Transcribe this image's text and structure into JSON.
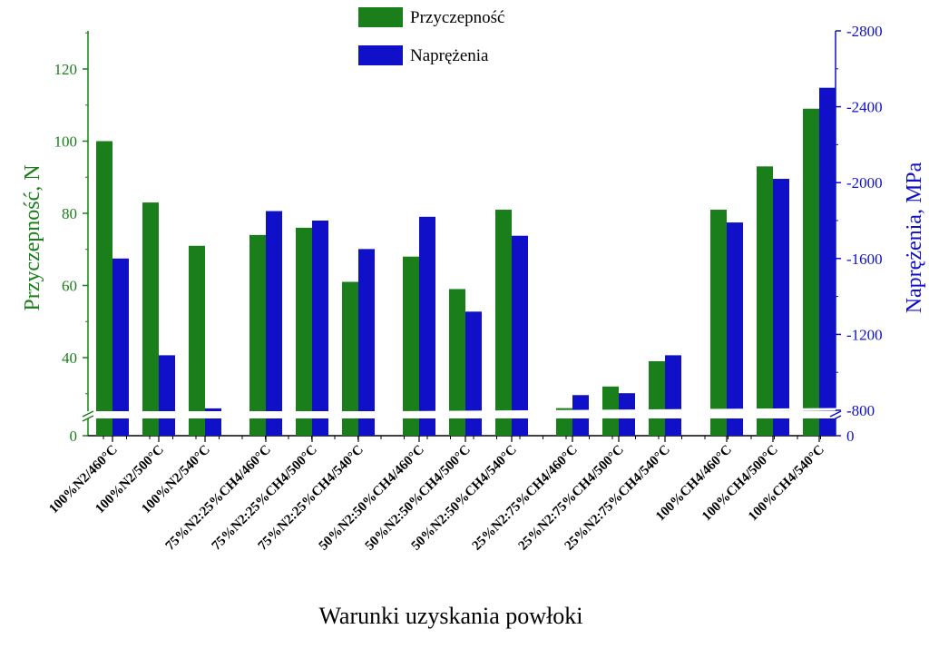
{
  "chart_data": {
    "type": "bar",
    "title": "",
    "xlabel": "Warunki uzyskania powłoki",
    "ylabel_left": "Przyczepność, N",
    "ylabel_right": "Naprężenia, MPa",
    "colors": {
      "left": "#1a7f1a",
      "right": "#1010c8",
      "axis": "#000000"
    },
    "left_axis": {
      "broken": true,
      "ylim": [
        20,
        130
      ],
      "ticks": [
        40,
        60,
        80,
        100,
        120
      ],
      "below_break_tick": 0
    },
    "right_axis": {
      "broken": true,
      "ylim": [
        -800,
        -2800
      ],
      "ticks": [
        -800,
        -1200,
        -1600,
        -2000,
        -2400,
        -2800
      ],
      "below_break_tick": 0
    },
    "legend": {
      "position": "top-center",
      "entries": [
        "Przyczepność",
        "Naprężenia"
      ]
    },
    "groups": [
      [
        "100%N2/460°C",
        "100%N2/500°C",
        "100%N2/540°C"
      ],
      [
        "75%N2:25%CH4/460°C",
        "75%N2:25%CH4/500°C",
        "75%N2:25%CH4/540°C"
      ],
      [
        "50%N2:50%CH4/460°C",
        "50%N2:50%CH4/500°C",
        "50%N2:50%CH4/540°C"
      ],
      [
        "25%N2:75%CH4/460°C",
        "25%N2:75%CH4/500°C",
        "25%N2:75%CH4/540°C"
      ],
      [
        "100%CH4/460°C",
        "100%CH4/500°C",
        "100%CH4/540°C"
      ]
    ],
    "series": [
      {
        "name": "Przyczepność",
        "axis": "left",
        "values": [
          [
            100,
            83,
            71
          ],
          [
            74,
            76,
            61
          ],
          [
            68,
            59,
            81
          ],
          [
            26,
            32,
            39
          ],
          [
            81,
            93,
            109
          ]
        ]
      },
      {
        "name": "Naprężenia",
        "axis": "right",
        "values": [
          [
            -1600,
            -1090,
            -810
          ],
          [
            -1850,
            -1800,
            -1650
          ],
          [
            -1820,
            -1320,
            -1720
          ],
          [
            -880,
            -890,
            -1090
          ],
          [
            -1790,
            -2020,
            -2500
          ]
        ]
      }
    ]
  }
}
